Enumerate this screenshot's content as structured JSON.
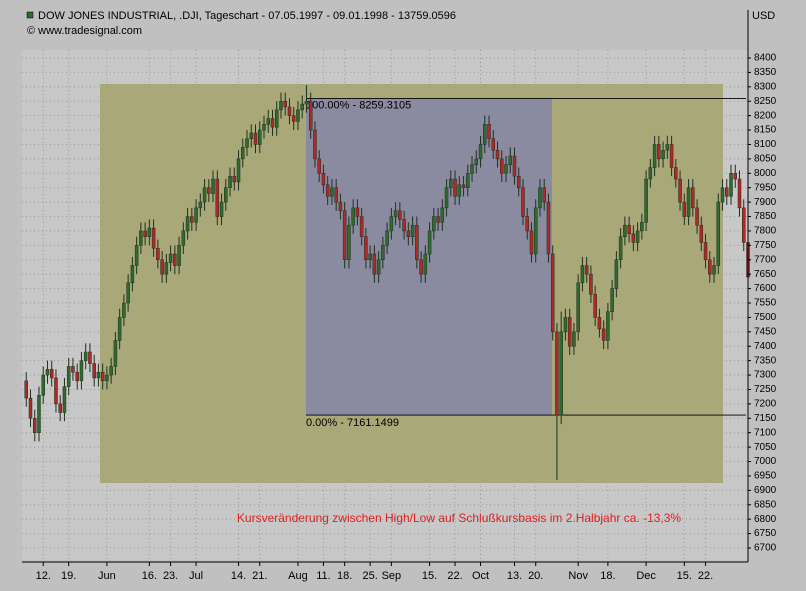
{
  "chart_data": {
    "type": "candlestick",
    "title": "DOW JONES INDUSTRIAL, .DJI, Tageschart - 07.05.1997 - 09.01.1998 - 13759.0596",
    "subtitle": "© www.tradesignal.com",
    "y_axis_label": "USD",
    "annotation": "Kursveränderung zwischen High/Low  auf Schlußkursbasis im 2.Halbjahr ca. -13,3%",
    "fib_levels": [
      {
        "value": 8259.3105,
        "label": "100.00% - 8259.3105"
      },
      {
        "value": 7161.1499,
        "label": "0.00% - 7161.1499"
      }
    ],
    "up_color": "#2f6b2f",
    "down_color": "#b02828",
    "xlim": [
      -1,
      170
    ],
    "xticks": [
      {
        "value": 4,
        "label": "12."
      },
      {
        "value": 10,
        "label": "19."
      },
      {
        "value": 19,
        "label": "Jun"
      },
      {
        "value": 29,
        "label": "16."
      },
      {
        "value": 34,
        "label": "23."
      },
      {
        "value": 40,
        "label": "Jul"
      },
      {
        "value": 50,
        "label": "14."
      },
      {
        "value": 55,
        "label": "21."
      },
      {
        "value": 64,
        "label": "Aug"
      },
      {
        "value": 70,
        "label": "11."
      },
      {
        "value": 75,
        "label": "18."
      },
      {
        "value": 81,
        "label": "25."
      },
      {
        "value": 86,
        "label": "Sep"
      },
      {
        "value": 95,
        "label": "15."
      },
      {
        "value": 101,
        "label": "22."
      },
      {
        "value": 107,
        "label": "Oct"
      },
      {
        "value": 115,
        "label": "13."
      },
      {
        "value": 120,
        "label": "20."
      },
      {
        "value": 130,
        "label": "Nov"
      },
      {
        "value": 137,
        "label": "18."
      },
      {
        "value": 146,
        "label": "Dec"
      },
      {
        "value": 155,
        "label": "15."
      },
      {
        "value": 160,
        "label": "22."
      }
    ],
    "ylim": [
      6700,
      8400
    ],
    "yticks": [
      6700,
      6750,
      6800,
      6850,
      6900,
      6950,
      7000,
      7050,
      7100,
      7150,
      7200,
      7250,
      7300,
      7350,
      7400,
      7450,
      7500,
      7550,
      7600,
      7650,
      7700,
      7750,
      7800,
      7850,
      7900,
      7950,
      8000,
      8050,
      8100,
      8150,
      8200,
      8250,
      8300,
      8350,
      8400
    ],
    "grid": true,
    "open": [
      7280,
      7220,
      7150,
      7100,
      7230,
      7300,
      7320,
      7290,
      7200,
      7170,
      7260,
      7330,
      7310,
      7280,
      7350,
      7380,
      7340,
      7290,
      7310,
      7280,
      7300,
      7330,
      7420,
      7500,
      7550,
      7620,
      7680,
      7750,
      7800,
      7780,
      7810,
      7740,
      7700,
      7650,
      7690,
      7720,
      7680,
      7750,
      7800,
      7850,
      7830,
      7880,
      7900,
      7950,
      7930,
      7980,
      7850,
      7900,
      7950,
      7990,
      7970,
      8050,
      8090,
      8120,
      8140,
      8100,
      8150,
      8170,
      8190,
      8160,
      8220,
      8250,
      8230,
      8200,
      8180,
      8220,
      8240,
      8250,
      8150,
      8050,
      8000,
      7960,
      7920,
      7950,
      7900,
      7870,
      7700,
      7820,
      7880,
      7850,
      7780,
      7700,
      7720,
      7650,
      7700,
      7750,
      7800,
      7850,
      7870,
      7840,
      7800,
      7780,
      7820,
      7700,
      7650,
      7720,
      7800,
      7850,
      7830,
      7880,
      7950,
      7980,
      7920,
      7960,
      7950,
      8000,
      8030,
      8050,
      8100,
      8170,
      8120,
      8080,
      8050,
      8000,
      8030,
      8060,
      7990,
      7950,
      7850,
      7800,
      7720,
      7880,
      7950,
      7900,
      7720,
      7450,
      7161,
      7450,
      7500,
      7400,
      7450,
      7620,
      7680,
      7650,
      7580,
      7500,
      7460,
      7420,
      7520,
      7600,
      7700,
      7780,
      7820,
      7790,
      7760,
      7800,
      7830,
      7980,
      8020,
      8100,
      8050,
      8080,
      8100,
      8020,
      7980,
      7900,
      7850,
      7950,
      7880,
      7820,
      7760,
      7700,
      7650,
      7680,
      7900,
      7950,
      7920,
      8000,
      7980,
      7880,
      7760
    ],
    "high": [
      7310,
      7250,
      7180,
      7260,
      7330,
      7350,
      7350,
      7320,
      7230,
      7290,
      7360,
      7360,
      7340,
      7380,
      7410,
      7410,
      7370,
      7340,
      7340,
      7330,
      7360,
      7450,
      7530,
      7580,
      7650,
      7710,
      7780,
      7830,
      7830,
      7840,
      7840,
      7770,
      7730,
      7720,
      7750,
      7750,
      7780,
      7830,
      7880,
      7880,
      7910,
      7930,
      7980,
      7980,
      8010,
      8010,
      7930,
      7980,
      8020,
      8020,
      8080,
      8120,
      8150,
      8170,
      8170,
      8180,
      8200,
      8220,
      8220,
      8250,
      8280,
      8280,
      8260,
      8230,
      8250,
      8270,
      8306,
      8280,
      8180,
      8080,
      8030,
      7990,
      7980,
      7980,
      7930,
      7900,
      7850,
      7910,
      7910,
      7880,
      7810,
      7750,
      7750,
      7730,
      7780,
      7830,
      7880,
      7900,
      7900,
      7870,
      7830,
      7850,
      7850,
      7730,
      7750,
      7830,
      7880,
      7880,
      7910,
      7980,
      8010,
      8010,
      7990,
      7990,
      8030,
      8060,
      8080,
      8130,
      8200,
      8200,
      8150,
      8110,
      8080,
      8060,
      8090,
      8090,
      8020,
      7980,
      7880,
      7830,
      7910,
      7980,
      7980,
      7930,
      7750,
      7480,
      7520,
      7530,
      7530,
      7480,
      7650,
      7710,
      7710,
      7680,
      7610,
      7530,
      7490,
      7550,
      7630,
      7730,
      7810,
      7850,
      7850,
      7820,
      7830,
      7860,
      8010,
      8050,
      8130,
      8130,
      8110,
      8130,
      8130,
      8050,
      8010,
      7930,
      7980,
      7980,
      7910,
      7850,
      7790,
      7730,
      7710,
      7930,
      7980,
      7980,
      8030,
      8030,
      8010,
      7910,
      7790
    ],
    "low": [
      7190,
      7120,
      7070,
      7070,
      7200,
      7270,
      7260,
      7170,
      7140,
      7140,
      7230,
      7280,
      7250,
      7250,
      7320,
      7310,
      7260,
      7260,
      7250,
      7250,
      7270,
      7300,
      7390,
      7470,
      7520,
      7590,
      7650,
      7720,
      7750,
      7750,
      7710,
      7670,
      7620,
      7620,
      7660,
      7650,
      7650,
      7720,
      7770,
      7800,
      7800,
      7850,
      7870,
      7900,
      7900,
      7820,
      7820,
      7870,
      7920,
      7940,
      7940,
      8020,
      8060,
      8090,
      8070,
      8070,
      8120,
      8140,
      8130,
      8130,
      8190,
      8200,
      8170,
      8150,
      8150,
      8190,
      8210,
      8120,
      8020,
      7970,
      7930,
      7890,
      7890,
      7870,
      7840,
      7670,
      7670,
      7790,
      7820,
      7750,
      7670,
      7670,
      7620,
      7620,
      7670,
      7720,
      7770,
      7820,
      7810,
      7770,
      7750,
      7750,
      7670,
      7620,
      7620,
      7690,
      7770,
      7800,
      7800,
      7850,
      7920,
      7890,
      7890,
      7920,
      7920,
      7970,
      8000,
      8020,
      8070,
      8090,
      8050,
      8020,
      7970,
      7970,
      8000,
      7960,
      7920,
      7820,
      7770,
      7690,
      7690,
      7850,
      7870,
      7690,
      7420,
      6936,
      7130,
      7420,
      7370,
      7370,
      7420,
      7590,
      7620,
      7550,
      7470,
      7430,
      7390,
      7390,
      7490,
      7570,
      7670,
      7750,
      7760,
      7730,
      7730,
      7770,
      7800,
      7950,
      7990,
      8020,
      8020,
      8050,
      7990,
      7950,
      7870,
      7820,
      7820,
      7850,
      7790,
      7730,
      7670,
      7620,
      7620,
      7650,
      7870,
      7890,
      7890,
      7950,
      7850,
      7730,
      7520
    ],
    "close": [
      7220,
      7150,
      7100,
      7230,
      7300,
      7320,
      7290,
      7200,
      7170,
      7260,
      7330,
      7310,
      7280,
      7350,
      7380,
      7340,
      7290,
      7310,
      7280,
      7300,
      7330,
      7420,
      7500,
      7550,
      7620,
      7680,
      7750,
      7800,
      7780,
      7810,
      7740,
      7700,
      7650,
      7690,
      7720,
      7680,
      7750,
      7800,
      7850,
      7830,
      7880,
      7900,
      7950,
      7930,
      7980,
      7850,
      7900,
      7950,
      7990,
      7970,
      8050,
      8090,
      8120,
      8140,
      8100,
      8150,
      8170,
      8190,
      8160,
      8220,
      8250,
      8230,
      8200,
      8180,
      8220,
      8240,
      8250,
      8150,
      8050,
      8000,
      7960,
      7920,
      7950,
      7900,
      7870,
      7700,
      7820,
      7880,
      7850,
      7780,
      7700,
      7720,
      7650,
      7700,
      7750,
      7800,
      7850,
      7870,
      7840,
      7800,
      7780,
      7820,
      7700,
      7650,
      7720,
      7800,
      7850,
      7830,
      7880,
      7950,
      7980,
      7920,
      7960,
      7950,
      8000,
      8030,
      8050,
      8100,
      8170,
      8120,
      8080,
      8050,
      8000,
      8030,
      8060,
      7990,
      7950,
      7850,
      7800,
      7720,
      7880,
      7950,
      7900,
      7720,
      7450,
      7161,
      7450,
      7500,
      7400,
      7450,
      7620,
      7680,
      7650,
      7580,
      7500,
      7460,
      7420,
      7520,
      7600,
      7700,
      7780,
      7820,
      7790,
      7760,
      7800,
      7830,
      7980,
      8020,
      8100,
      8050,
      8080,
      8100,
      8020,
      7980,
      7900,
      7850,
      7950,
      7880,
      7820,
      7760,
      7700,
      7650,
      7680,
      7900,
      7950,
      7920,
      8000,
      7980,
      7880,
      7760,
      7640
    ]
  }
}
